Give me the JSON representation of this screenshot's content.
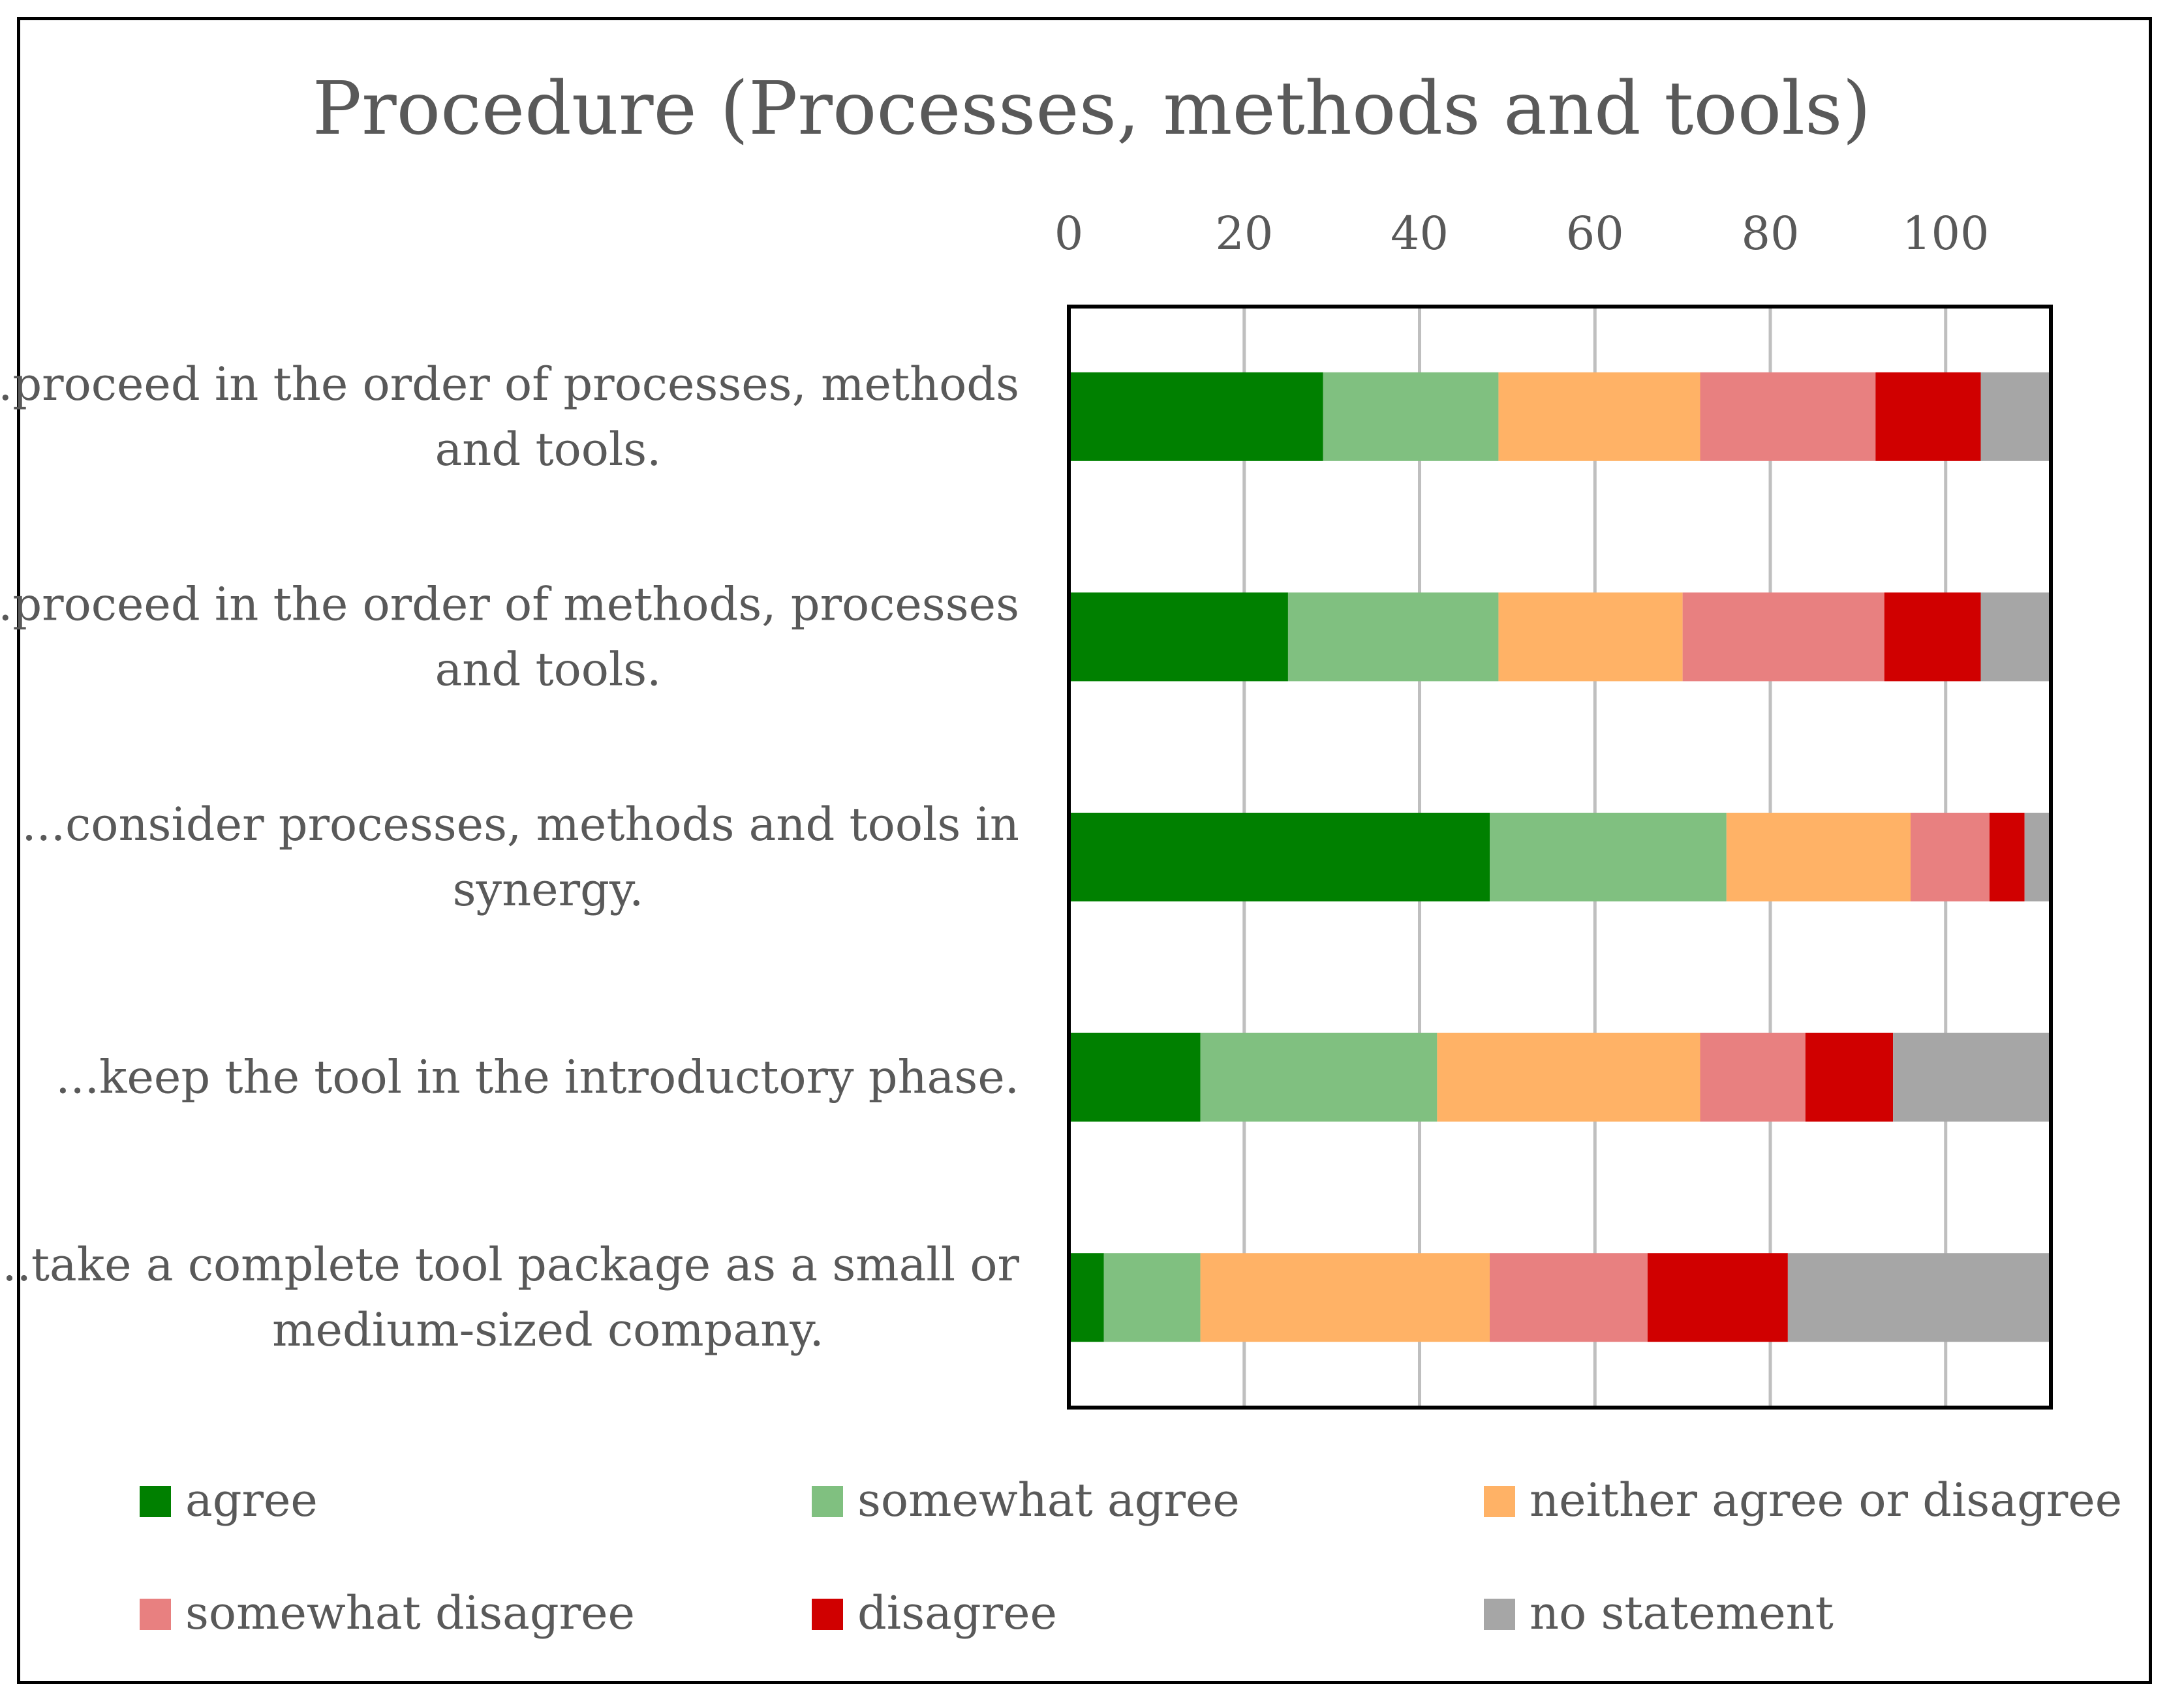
{
  "chart_data": {
    "type": "bar",
    "orientation": "horizontal",
    "stacked": true,
    "title": "Procedure (Processes, methods and tools)",
    "xlabel": "",
    "ylabel": "",
    "xlim": [
      0,
      112
    ],
    "x_ticks": [
      "0",
      "20",
      "40",
      "60",
      "80",
      "100"
    ],
    "x_axis_position": "top",
    "grid": true,
    "legend_position": "bottom",
    "categories": [
      [
        "...proceed in the order of processes, methods",
        "and tools."
      ],
      [
        "...proceed in the order of methods, processes",
        "and tools."
      ],
      [
        "...consider processes, methods and tools in",
        "synergy."
      ],
      [
        "...keep the tool in the introductory phase."
      ],
      [
        "...take a complete tool package as a small or",
        "medium-sized company."
      ]
    ],
    "series": [
      {
        "name": "agree",
        "color": "#008000",
        "values": [
          29,
          25,
          48,
          15,
          4
        ]
      },
      {
        "name": "somewhat agree",
        "color": "#80C080",
        "values": [
          20,
          24,
          27,
          27,
          11
        ]
      },
      {
        "name": "neither agree or disagree",
        "color": "#FFB266",
        "values": [
          23,
          21,
          21,
          30,
          33
        ]
      },
      {
        "name": "somewhat disagree",
        "color": "#E88080",
        "values": [
          20,
          23,
          9,
          12,
          18
        ]
      },
      {
        "name": "disagree",
        "color": "#D00000",
        "values": [
          12,
          11,
          4,
          10,
          16
        ]
      },
      {
        "name": "no statement",
        "color": "#A6A6A6",
        "values": [
          8,
          8,
          3,
          18,
          30
        ]
      }
    ]
  }
}
